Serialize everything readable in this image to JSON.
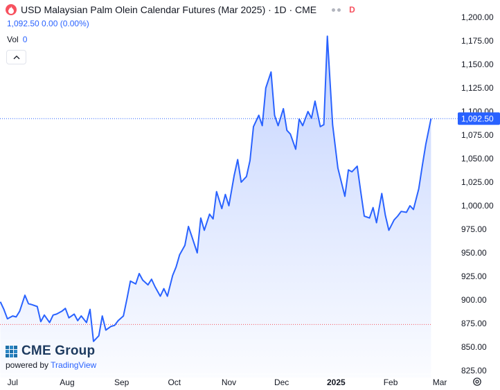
{
  "header": {
    "title": "USD Malaysian Palm Olein Calendar Futures (Mar 2025) · 1D · CME",
    "badge": "D",
    "price_line": "1,092.50 0.00 (0.00%)",
    "vol_label": "Vol",
    "vol_value": "0"
  },
  "logo": {
    "brand": "CME Group",
    "powered_prefix": "powered by",
    "powered_brand": "TradingView"
  },
  "colors": {
    "line": "#2962ff",
    "fill_top": "rgba(41,98,255,0.28)",
    "fill_bottom": "rgba(41,98,255,0.02)",
    "last_price_label_bg": "#2962ff",
    "grid": "#f0f3fa",
    "reference_line": "#f7525f"
  },
  "icons": [
    "flame-icon",
    "more-dots-icon",
    "chevron-up-icon",
    "gear-icon"
  ],
  "chart_data": {
    "type": "area",
    "title": "USD Malaysian Palm Olein Calendar Futures (Mar 2025)",
    "xlabel": "",
    "ylabel": "",
    "ylim": [
      825,
      1200
    ],
    "y_ticks": [
      825,
      850,
      875,
      900,
      925,
      950,
      975,
      1000,
      1025,
      1050,
      1075,
      1100,
      1125,
      1150,
      1175,
      1200
    ],
    "y_tick_labels": [
      "825.00",
      "850.00",
      "875.00",
      "900.00",
      "925.00",
      "950.00",
      "975.00",
      "1,000.00",
      "1,025.00",
      "1,050.00",
      "1,075.00",
      "1,100.00",
      "1,125.00",
      "1,150.00",
      "1,175.00",
      "1,200.00"
    ],
    "x_ticks": [
      {
        "date": "2024-07-01",
        "label": "Jul",
        "bold": false
      },
      {
        "date": "2024-08-01",
        "label": "Aug",
        "bold": false
      },
      {
        "date": "2024-09-01",
        "label": "Sep",
        "bold": false
      },
      {
        "date": "2024-10-01",
        "label": "Oct",
        "bold": false
      },
      {
        "date": "2024-11-01",
        "label": "Nov",
        "bold": false
      },
      {
        "date": "2024-12-01",
        "label": "Dec",
        "bold": false
      },
      {
        "date": "2025-01-01",
        "label": "2025",
        "bold": true
      },
      {
        "date": "2025-02-01",
        "label": "Feb",
        "bold": false
      },
      {
        "date": "2025-03-01",
        "label": "Mar",
        "bold": false
      }
    ],
    "last_price": 1092.5,
    "last_price_label": "1,092.50",
    "reference_level": 874,
    "grid": false,
    "series": [
      {
        "values": [
          [
            "2024-06-24",
            898
          ],
          [
            "2024-06-26",
            890
          ],
          [
            "2024-06-28",
            880
          ],
          [
            "2024-07-01",
            883
          ],
          [
            "2024-07-03",
            882
          ],
          [
            "2024-07-05",
            888
          ],
          [
            "2024-07-08",
            905
          ],
          [
            "2024-07-10",
            896
          ],
          [
            "2024-07-12",
            895
          ],
          [
            "2024-07-15",
            893
          ],
          [
            "2024-07-17",
            877
          ],
          [
            "2024-07-19",
            884
          ],
          [
            "2024-07-22",
            876
          ],
          [
            "2024-07-24",
            884
          ],
          [
            "2024-07-26",
            885
          ],
          [
            "2024-07-29",
            888
          ],
          [
            "2024-07-31",
            891
          ],
          [
            "2024-08-02",
            881
          ],
          [
            "2024-08-05",
            885
          ],
          [
            "2024-08-07",
            878
          ],
          [
            "2024-08-09",
            883
          ],
          [
            "2024-08-12",
            876
          ],
          [
            "2024-08-14",
            890
          ],
          [
            "2024-08-16",
            856
          ],
          [
            "2024-08-19",
            862
          ],
          [
            "2024-08-21",
            883
          ],
          [
            "2024-08-23",
            868
          ],
          [
            "2024-08-26",
            872
          ],
          [
            "2024-08-28",
            873
          ],
          [
            "2024-08-30",
            878
          ],
          [
            "2024-09-02",
            883
          ],
          [
            "2024-09-04",
            901
          ],
          [
            "2024-09-06",
            920
          ],
          [
            "2024-09-09",
            917
          ],
          [
            "2024-09-11",
            928
          ],
          [
            "2024-09-13",
            921
          ],
          [
            "2024-09-16",
            916
          ],
          [
            "2024-09-18",
            922
          ],
          [
            "2024-09-20",
            914
          ],
          [
            "2024-09-23",
            904
          ],
          [
            "2024-09-25",
            912
          ],
          [
            "2024-09-27",
            904
          ],
          [
            "2024-09-30",
            926
          ],
          [
            "2024-10-02",
            935
          ],
          [
            "2024-10-04",
            948
          ],
          [
            "2024-10-07",
            958
          ],
          [
            "2024-10-09",
            978
          ],
          [
            "2024-10-11",
            967
          ],
          [
            "2024-10-14",
            950
          ],
          [
            "2024-10-16",
            987
          ],
          [
            "2024-10-18",
            974
          ],
          [
            "2024-10-21",
            991
          ],
          [
            "2024-10-23",
            986
          ],
          [
            "2024-10-25",
            1015
          ],
          [
            "2024-10-28",
            997
          ],
          [
            "2024-10-30",
            1012
          ],
          [
            "2024-11-01",
            1000
          ],
          [
            "2024-11-04",
            1032
          ],
          [
            "2024-11-06",
            1049
          ],
          [
            "2024-11-08",
            1025
          ],
          [
            "2024-11-11",
            1031
          ],
          [
            "2024-11-13",
            1048
          ],
          [
            "2024-11-15",
            1084
          ],
          [
            "2024-11-18",
            1096
          ],
          [
            "2024-11-20",
            1085
          ],
          [
            "2024-11-22",
            1125
          ],
          [
            "2024-11-25",
            1142
          ],
          [
            "2024-11-27",
            1096
          ],
          [
            "2024-11-29",
            1085
          ],
          [
            "2024-12-02",
            1103
          ],
          [
            "2024-12-04",
            1080
          ],
          [
            "2024-12-06",
            1076
          ],
          [
            "2024-12-09",
            1060
          ],
          [
            "2024-12-11",
            1092
          ],
          [
            "2024-12-13",
            1085
          ],
          [
            "2024-12-16",
            1100
          ],
          [
            "2024-12-18",
            1093
          ],
          [
            "2024-12-20",
            1111
          ],
          [
            "2024-12-23",
            1084
          ],
          [
            "2024-12-25",
            1086
          ],
          [
            "2024-12-27",
            1180
          ],
          [
            "2024-12-30",
            1086
          ],
          [
            "2025-01-02",
            1040
          ],
          [
            "2025-01-06",
            1010
          ],
          [
            "2025-01-08",
            1038
          ],
          [
            "2025-01-10",
            1036
          ],
          [
            "2025-01-13",
            1042
          ],
          [
            "2025-01-15",
            1015
          ],
          [
            "2025-01-17",
            989
          ],
          [
            "2025-01-20",
            987
          ],
          [
            "2025-01-22",
            998
          ],
          [
            "2025-01-24",
            982
          ],
          [
            "2025-01-27",
            1013
          ],
          [
            "2025-01-29",
            990
          ],
          [
            "2025-01-31",
            974
          ],
          [
            "2025-02-03",
            985
          ],
          [
            "2025-02-05",
            989
          ],
          [
            "2025-02-07",
            994
          ],
          [
            "2025-02-10",
            993
          ],
          [
            "2025-02-12",
            1000
          ],
          [
            "2025-02-14",
            996
          ],
          [
            "2025-02-17",
            1018
          ],
          [
            "2025-02-19",
            1042
          ],
          [
            "2025-02-21",
            1065
          ],
          [
            "2025-02-24",
            1092.5
          ]
        ]
      }
    ]
  }
}
